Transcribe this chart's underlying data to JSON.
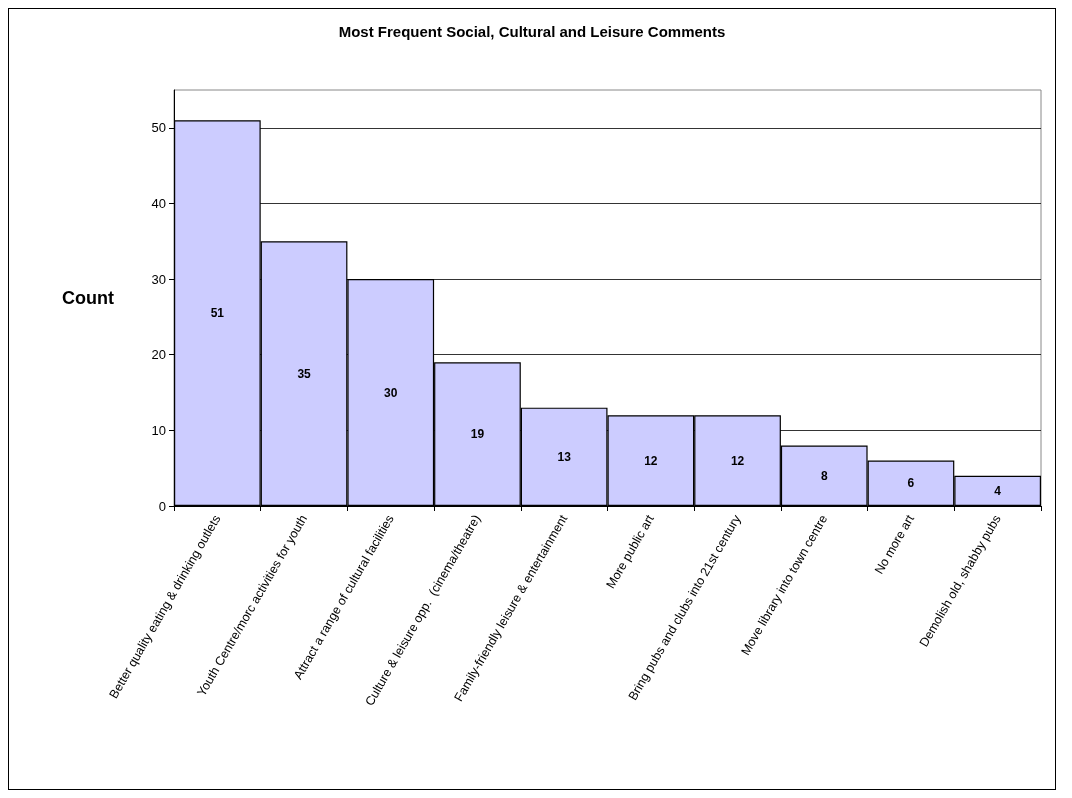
{
  "chart_data": {
    "type": "bar",
    "title": "Most Frequent Social, Cultural and Leisure Comments",
    "ylabel": "Count",
    "categories": [
      "Better quality eating & drinking outlets",
      "Youth Centre/morc activities for youth",
      "Attract a range of cultural facilities",
      "Culture & leisure opp.  (cinema/theatre)",
      "Family-friendly leisure & entertainment",
      "More public art",
      "Bring pubs and clubs into 21st century",
      "Move library into town centre",
      "No more art",
      "Demolish old, shabby pubs"
    ],
    "values": [
      51,
      35,
      30,
      19,
      13,
      12,
      12,
      8,
      6,
      4
    ],
    "color": "#ccccff",
    "ylim": [
      0,
      55
    ],
    "yticks": [
      0,
      10,
      20,
      30,
      40,
      50
    ],
    "grid": "y",
    "data_labels": true
  }
}
